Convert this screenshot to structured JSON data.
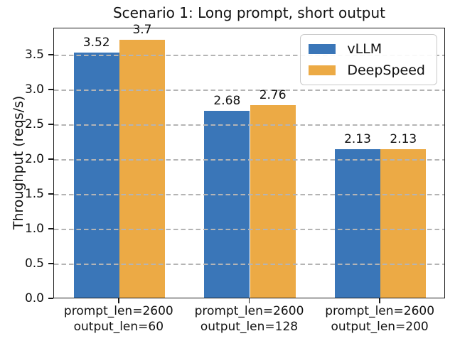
{
  "chart_data": {
    "type": "bar",
    "title": "Scenario 1: Long prompt, short output",
    "ylabel": "Throughput (reqs/s)",
    "xlabel": "",
    "categories": [
      "prompt_len=2600\noutput_len=60",
      "prompt_len=2600\noutput_len=128",
      "prompt_len=2600\noutput_len=200"
    ],
    "series": [
      {
        "name": "vLLM",
        "color": "#3A76B8",
        "values": [
          3.52,
          2.68,
          2.13
        ]
      },
      {
        "name": "DeepSpeed",
        "color": "#ECAA45",
        "values": [
          3.7,
          2.76,
          2.13
        ]
      }
    ],
    "bar_value_labels": true,
    "ylim": [
      0,
      3.885
    ],
    "y_ticks": [
      "0.0",
      "0.5",
      "1.0",
      "1.5",
      "2.0",
      "2.5",
      "3.0",
      "3.5"
    ],
    "grid": {
      "axis": "y",
      "style": "dashed",
      "color": "#b4b4b4",
      "drawn_above_bars": true
    },
    "legend": {
      "position": "upper right",
      "entries": [
        "vLLM",
        "DeepSpeed"
      ]
    },
    "bar_width_fraction": 0.35
  }
}
